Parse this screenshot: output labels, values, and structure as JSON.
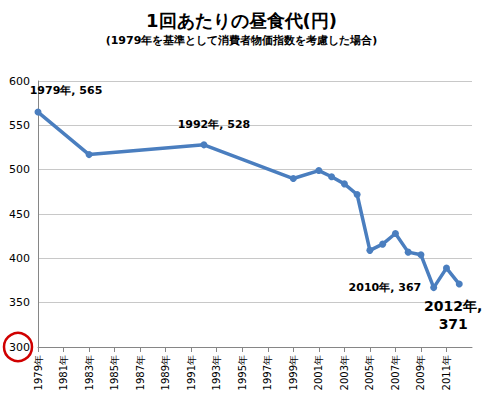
{
  "chart_data": {
    "type": "line",
    "title": "1回あたりの昼食代(円)",
    "subtitle": "(1979年を基準として消費者物価指数を考慮した場合)",
    "x": [
      1979,
      1983,
      1992,
      1999,
      2001,
      2002,
      2003,
      2004,
      2005,
      2006,
      2007,
      2008,
      2009,
      2010,
      2011,
      2012
    ],
    "values": [
      565,
      517,
      528,
      490,
      499,
      492,
      484,
      472,
      409,
      416,
      428,
      407,
      404,
      367,
      389,
      371
    ],
    "color": "#4a7ebf",
    "marker": "circle",
    "xlim": [
      1979,
      2013
    ],
    "xticks": [
      {
        "value": 1979,
        "label": "1979年"
      },
      {
        "value": 1981,
        "label": "1981年"
      },
      {
        "value": 1983,
        "label": "1983年"
      },
      {
        "value": 1985,
        "label": "1985年"
      },
      {
        "value": 1987,
        "label": "1987年"
      },
      {
        "value": 1989,
        "label": "1989年"
      },
      {
        "value": 1991,
        "label": "1991年"
      },
      {
        "value": 1993,
        "label": "1993年"
      },
      {
        "value": 1995,
        "label": "1995年"
      },
      {
        "value": 1997,
        "label": "1997年"
      },
      {
        "value": 1999,
        "label": "1999年"
      },
      {
        "value": 2001,
        "label": "2001年"
      },
      {
        "value": 2003,
        "label": "2003年"
      },
      {
        "value": 2005,
        "label": "2005年"
      },
      {
        "value": 2007,
        "label": "2007年"
      },
      {
        "value": 2009,
        "label": "2009年"
      },
      {
        "value": 2011,
        "label": "2011年"
      }
    ],
    "ylim": [
      300,
      600
    ],
    "yticks": [
      300,
      350,
      400,
      450,
      500,
      550,
      600
    ],
    "grid": true,
    "annotations": [
      {
        "x": 1979,
        "y": 565,
        "text": "1979年, 565"
      },
      {
        "x": 1992,
        "y": 528,
        "text": "1992年, 528"
      },
      {
        "x": 2010,
        "y": 367,
        "text": "2010年, 367"
      },
      {
        "x": 2012,
        "y": 371,
        "text": "2012年,\n371"
      }
    ]
  }
}
